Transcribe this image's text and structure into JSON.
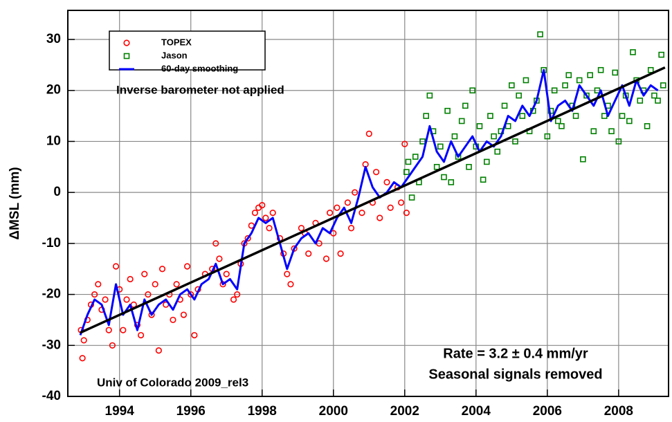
{
  "chart_data": {
    "type": "scatter",
    "y_label": "ΔMSL (mm)",
    "xlim": [
      1992.55,
      2009.4
    ],
    "ylim": [
      -40,
      35.7
    ],
    "xticks": [
      1994,
      1996,
      1998,
      2000,
      2002,
      2004,
      2006,
      2008
    ],
    "yticks": [
      -40,
      -30,
      -20,
      -10,
      0,
      10,
      20,
      30
    ],
    "grid": true,
    "legend": "upper left",
    "annotations": [
      "Inverse barometer not applied",
      "Rate = 3.2 ± 0.4 mm/yr",
      "Seasonal signals removed",
      "Univ of Colorado 2009_rel3"
    ],
    "series": [
      {
        "name": "TOPEX",
        "type": "scatter",
        "marker": "circle",
        "color": "#ff0000",
        "x": [
          1992.92,
          1992.96,
          1993.0,
          1993.1,
          1993.2,
          1993.3,
          1993.4,
          1993.5,
          1993.6,
          1993.7,
          1993.8,
          1993.9,
          1994.0,
          1994.1,
          1994.2,
          1994.3,
          1994.4,
          1994.5,
          1994.6,
          1994.7,
          1994.8,
          1994.9,
          1995.0,
          1995.1,
          1995.2,
          1995.3,
          1995.4,
          1995.5,
          1995.6,
          1995.7,
          1995.8,
          1995.9,
          1996.0,
          1996.1,
          1996.2,
          1996.4,
          1996.6,
          1996.7,
          1996.8,
          1996.9,
          1997.0,
          1997.2,
          1997.3,
          1997.4,
          1997.5,
          1997.6,
          1997.7,
          1997.8,
          1997.9,
          1998.0,
          1998.1,
          1998.2,
          1998.3,
          1998.5,
          1998.6,
          1998.7,
          1998.8,
          1998.9,
          1999.1,
          1999.2,
          1999.3,
          1999.5,
          1999.6,
          1999.8,
          1999.9,
          2000.0,
          2000.1,
          2000.2,
          2000.4,
          2000.5,
          2000.6,
          2000.8,
          2000.9,
          2001.0,
          2001.1,
          2001.2,
          2001.3,
          2001.5,
          2001.6,
          2001.8,
          2001.9,
          2002.0,
          2002.05
        ],
        "values": [
          -27,
          -32.5,
          -29,
          -25,
          -22,
          -20,
          -18,
          -23,
          -21,
          -27,
          -30,
          -14.5,
          -19,
          -27,
          -21,
          -17,
          -22,
          -26,
          -28,
          -16,
          -20,
          -24,
          -18,
          -31,
          -15,
          -22,
          -20,
          -25,
          -18,
          -21,
          -24,
          -14.5,
          -20,
          -28,
          -19,
          -16,
          -15,
          -10,
          -13,
          -18,
          -16,
          -21,
          -20,
          -14,
          -10,
          -9,
          -6.5,
          -4,
          -3,
          -2.5,
          -5,
          -7,
          -4,
          -9,
          -12,
          -16,
          -18,
          -11,
          -7,
          -8,
          -12,
          -6,
          -10,
          -13,
          -4,
          -8,
          -3,
          -12,
          -2,
          -7,
          0,
          -4,
          5.5,
          11.5,
          -2,
          4,
          -5,
          2,
          -3,
          1,
          -2,
          9.5,
          -4
        ]
      },
      {
        "name": "Jason",
        "type": "scatter",
        "marker": "square",
        "color": "#008000",
        "x": [
          2002.05,
          2002.1,
          2002.2,
          2002.3,
          2002.4,
          2002.5,
          2002.6,
          2002.7,
          2002.8,
          2002.9,
          2003.0,
          2003.1,
          2003.2,
          2003.3,
          2003.4,
          2003.5,
          2003.6,
          2003.7,
          2003.8,
          2003.9,
          2004.0,
          2004.1,
          2004.2,
          2004.3,
          2004.4,
          2004.5,
          2004.6,
          2004.7,
          2004.8,
          2004.9,
          2005.0,
          2005.1,
          2005.2,
          2005.3,
          2005.4,
          2005.5,
          2005.6,
          2005.7,
          2005.8,
          2005.9,
          2006.0,
          2006.1,
          2006.2,
          2006.3,
          2006.4,
          2006.5,
          2006.6,
          2006.7,
          2006.8,
          2006.9,
          2007.0,
          2007.1,
          2007.2,
          2007.3,
          2007.4,
          2007.5,
          2007.6,
          2007.7,
          2007.8,
          2007.9,
          2008.0,
          2008.1,
          2008.2,
          2008.3,
          2008.4,
          2008.5,
          2008.6,
          2008.7,
          2008.8,
          2008.9,
          2009.0,
          2009.1,
          2009.2,
          2009.25
        ],
        "values": [
          4,
          6,
          -1,
          7,
          2,
          10,
          15,
          19,
          12,
          5,
          9,
          3,
          16,
          2,
          11,
          7,
          14,
          17,
          5,
          20,
          9,
          13,
          2.5,
          6,
          15,
          11,
          8,
          12,
          17,
          13,
          21,
          10,
          19,
          15,
          22,
          12,
          16,
          18,
          31,
          24,
          11,
          16,
          20,
          14,
          13,
          21,
          23,
          17,
          15,
          22,
          6.5,
          19,
          23,
          12,
          20,
          24,
          15,
          17,
          12,
          23.5,
          10,
          15,
          19,
          14,
          27.5,
          22,
          18,
          20,
          13,
          24,
          19,
          18,
          27,
          21
        ]
      },
      {
        "name": "60-day smoothing",
        "type": "line",
        "color": "#0000ff",
        "x": [
          1992.9,
          1993.1,
          1993.3,
          1993.5,
          1993.7,
          1993.9,
          1994.1,
          1994.3,
          1994.5,
          1994.7,
          1994.9,
          1995.1,
          1995.3,
          1995.5,
          1995.7,
          1995.9,
          1996.1,
          1996.3,
          1996.5,
          1996.7,
          1996.9,
          1997.1,
          1997.3,
          1997.5,
          1997.7,
          1997.9,
          1998.1,
          1998.3,
          1998.5,
          1998.7,
          1998.9,
          1999.1,
          1999.3,
          1999.5,
          1999.7,
          1999.9,
          2000.1,
          2000.3,
          2000.5,
          2000.7,
          2000.9,
          2001.1,
          2001.3,
          2001.5,
          2001.7,
          2001.9,
          2002.1,
          2002.3,
          2002.5,
          2002.7,
          2002.9,
          2003.1,
          2003.3,
          2003.5,
          2003.7,
          2003.9,
          2004.1,
          2004.3,
          2004.5,
          2004.7,
          2004.9,
          2005.1,
          2005.3,
          2005.5,
          2005.7,
          2005.9,
          2006.1,
          2006.3,
          2006.5,
          2006.7,
          2006.9,
          2007.1,
          2007.3,
          2007.5,
          2007.7,
          2007.9,
          2008.1,
          2008.3,
          2008.5,
          2008.7,
          2008.9,
          2009.1
        ],
        "values": [
          -28,
          -24,
          -21,
          -22,
          -26,
          -18,
          -24,
          -22,
          -27,
          -21,
          -24,
          -22,
          -21,
          -23,
          -20,
          -19,
          -21,
          -18,
          -17,
          -14,
          -18,
          -17,
          -19,
          -10,
          -8,
          -5,
          -6,
          -5,
          -10,
          -15,
          -11,
          -9,
          -8,
          -10,
          -7,
          -8,
          -5,
          -3,
          -6,
          -1,
          5,
          1,
          -1,
          0,
          2,
          1,
          3,
          5,
          7,
          13,
          8,
          6,
          10,
          7,
          9,
          11,
          8,
          10,
          9,
          11,
          15,
          14,
          17,
          15,
          18,
          24,
          14,
          17,
          18,
          16,
          21,
          19,
          17,
          20,
          15,
          18,
          21,
          17,
          22,
          19,
          21,
          20
        ]
      }
    ],
    "trend_line": {
      "color": "#000000",
      "x": [
        1992.9,
        2009.3
      ],
      "values": [
        -27.5,
        24.5
      ]
    }
  }
}
